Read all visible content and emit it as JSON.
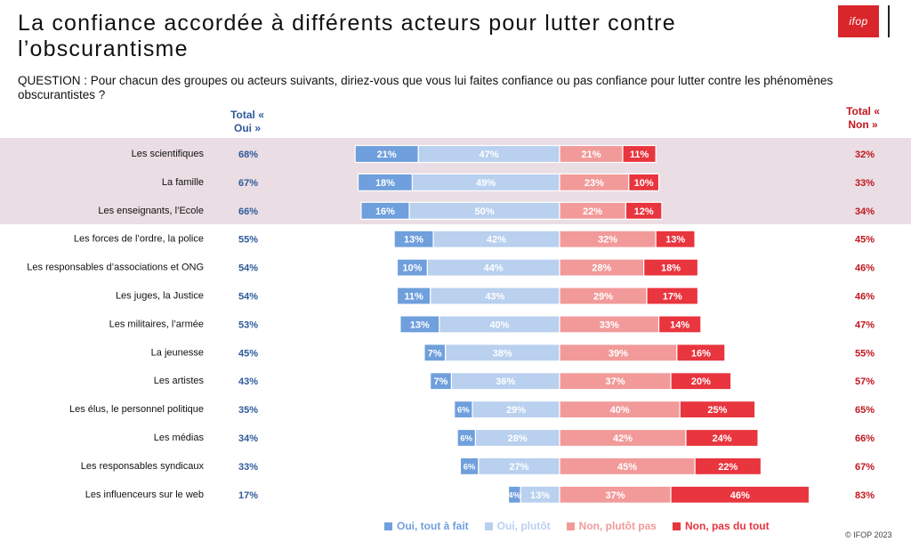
{
  "title": "La confiance accordée à différents acteurs pour lutter contre l’obscurantisme",
  "question": "QUESTION : Pour chacun des groupes ou acteurs suivants, diriez-vous que vous lui faites confiance ou pas confiance pour lutter contre les phénomènes obscurantistes ?",
  "logo_text": "ifop",
  "header_oui": "Total « Oui »",
  "header_non": "Total « Non »",
  "copyright": "© IFOP 2023",
  "colors": {
    "oui_tout_a_fait": "#6f9fdc",
    "oui_plutot": "#b9d0ef",
    "non_plutot_pas": "#f29a9a",
    "non_pas_du_tout": "#e8353e",
    "total_oui": "#2e5b9a",
    "total_non": "#c0161d",
    "highlight": "#eadde3"
  },
  "chart_data": {
    "type": "bar",
    "orientation": "horizontal-diverging-stacked",
    "highlighted_rows": 3,
    "categories": [
      "Les scientifiques",
      "La famille",
      "Les enseignants, l’Ecole",
      "Les forces de l’ordre, la police",
      "Les responsables d’associations et ONG",
      "Les juges, la Justice",
      "Les militaires, l’armée",
      "La jeunesse",
      "Les artistes",
      "Les élus, le personnel politique",
      "Les médias",
      "Les responsables syndicaux",
      "Les influenceurs sur le web"
    ],
    "series": [
      {
        "name": "Oui, tout à fait",
        "values": [
          21,
          18,
          16,
          13,
          10,
          11,
          13,
          7,
          7,
          6,
          6,
          6,
          4
        ]
      },
      {
        "name": "Oui, plutôt",
        "values": [
          47,
          49,
          50,
          42,
          44,
          43,
          40,
          38,
          36,
          29,
          28,
          27,
          13
        ]
      },
      {
        "name": "Non, plutôt pas",
        "values": [
          21,
          23,
          22,
          32,
          28,
          29,
          33,
          39,
          37,
          40,
          42,
          45,
          37
        ]
      },
      {
        "name": "Non, pas du tout",
        "values": [
          11,
          10,
          12,
          13,
          18,
          17,
          14,
          16,
          20,
          25,
          24,
          22,
          46
        ]
      }
    ],
    "total_oui": [
      68,
      67,
      66,
      55,
      54,
      54,
      53,
      45,
      43,
      35,
      34,
      33,
      17
    ],
    "total_non": [
      32,
      33,
      34,
      45,
      46,
      46,
      47,
      55,
      57,
      65,
      66,
      67,
      83
    ],
    "value_suffix": "%"
  }
}
